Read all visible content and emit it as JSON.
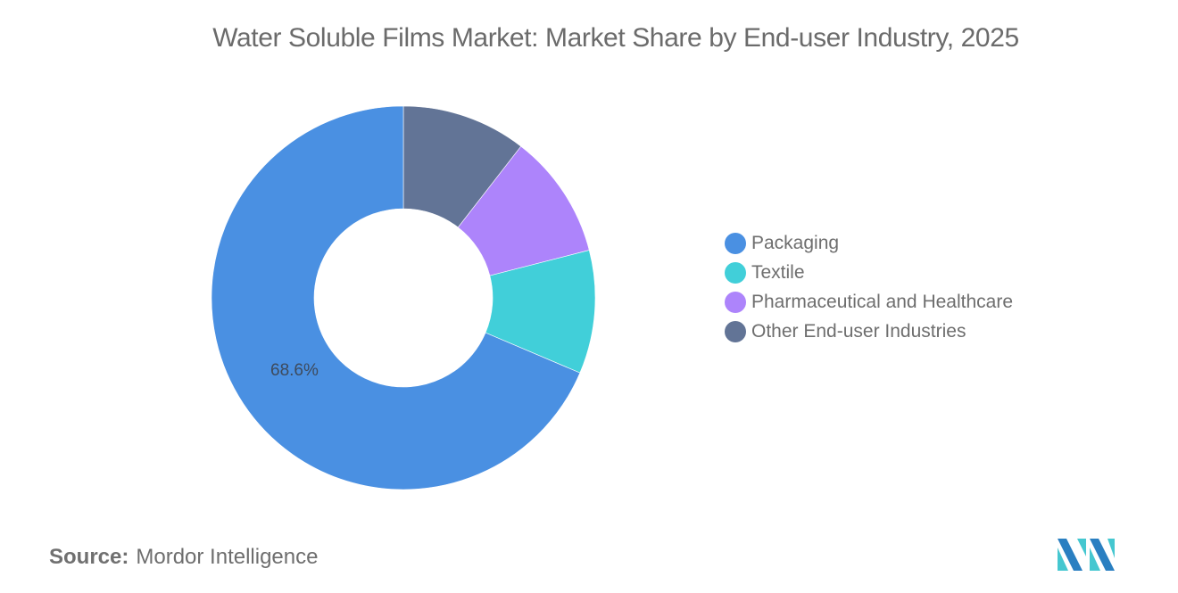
{
  "title": "Water Soluble Films Market: Market Share by End-user Industry, 2025",
  "source": {
    "label": "Source:",
    "value": "Mordor Intelligence"
  },
  "logo": {
    "name": "mordor-intelligence-logo",
    "colors": [
      "#2a7fc1",
      "#45c7d0"
    ]
  },
  "legend": {
    "items": [
      {
        "label": "Packaging",
        "color": "#4a90e2"
      },
      {
        "label": "Textile",
        "color": "#41cfd9"
      },
      {
        "label": "Pharmaceutical and Healthcare",
        "color": "#ad84fb"
      },
      {
        "label": "Other End-user Industries",
        "color": "#627496"
      }
    ]
  },
  "data_labels": {
    "packaging": "68.6%"
  },
  "chart_data": {
    "type": "pie",
    "variant": "donut",
    "title": "Water Soluble Films Market: Market Share by End-user Industry, 2025",
    "categories": [
      "Packaging",
      "Textile",
      "Pharmaceutical and Healthcare",
      "Other End-user Industries"
    ],
    "values": [
      68.6,
      10.4,
      10.5,
      10.5
    ],
    "unit": "%",
    "colors": [
      "#4a90e2",
      "#41cfd9",
      "#ad84fb",
      "#627496"
    ],
    "labeled_values": {
      "Packaging": "68.6%"
    },
    "legend_position": "right",
    "start_angle": "12 o'clock, counter-clockwise order: Packaging then clockwise from top: Other, Pharmaceutical, Textile"
  }
}
